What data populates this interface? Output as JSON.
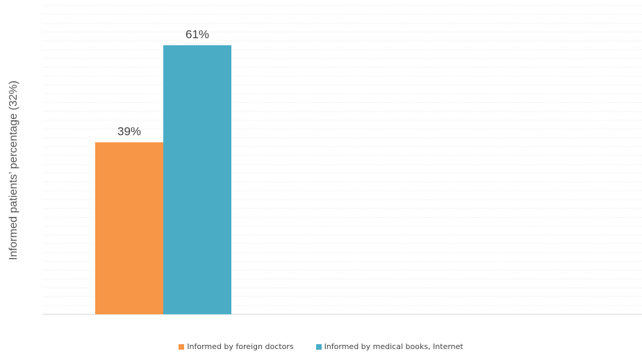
{
  "chart_data": {
    "type": "bar",
    "title": "",
    "xlabel": "",
    "ylabel": "Informed patients’ percentage  (32%)",
    "categories": [
      ""
    ],
    "series": [
      {
        "name": "Informed by foreign doctors",
        "values": [
          39
        ],
        "label": "39%",
        "color": "#F79646"
      },
      {
        "name": "Informed by medical books, Internet",
        "values": [
          61
        ],
        "label": "61%",
        "color": "#4BACC6"
      }
    ],
    "ylim": [
      0,
      70
    ],
    "grid": true,
    "legend": "bottom"
  }
}
